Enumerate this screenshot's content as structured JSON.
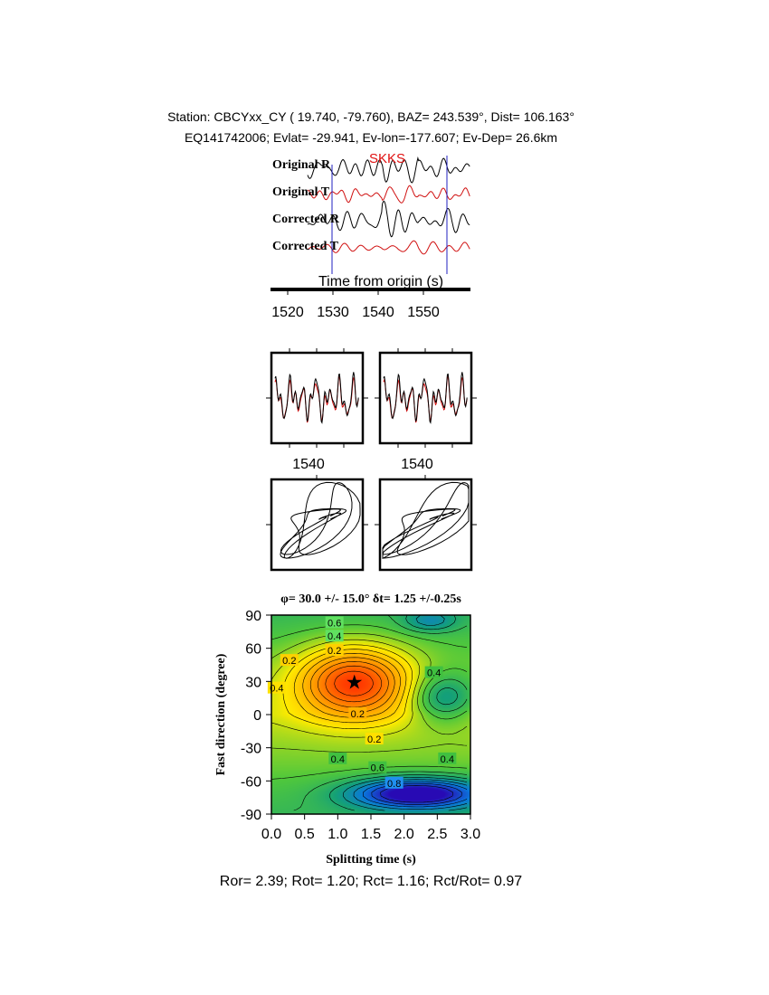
{
  "header": {
    "station_line": "Station: CBCYxx_CY (  19.740,  -79.760), BAZ=  243.539°, Dist=  106.163°",
    "event_line": "EQ141742006; Evlat= -29.941, Ev-lon=-177.607; Ev-Dep= 26.6km"
  },
  "traces": {
    "phase_label": "SKKS",
    "labels": [
      "Original R",
      "Original T",
      "Corrected R",
      "Corrected T"
    ],
    "time_axis_label": "Time from origin (s)",
    "time_ticks": [
      "1520",
      "1530",
      "1540",
      "1550"
    ]
  },
  "panels": {
    "wave_tick_left": "1540",
    "wave_tick_right": "1540"
  },
  "contour": {
    "title": "φ= 30.0 +/- 15.0° δt= 1.25 +/-0.25s",
    "ylabel": "Fast direction (degree)",
    "xlabel": "Splitting time (s)",
    "contour_labels": [
      "0.6",
      "0.4",
      "0.2",
      "0.2",
      "0.4",
      "0.2",
      "0.2",
      "0.4",
      "0.4",
      "0.6",
      "0.8"
    ]
  },
  "footer": {
    "ratios": "Ror= 2.39; Rot= 1.20; Rct= 1.16; Rct/Rot= 0.97"
  },
  "colors": {
    "radial": "#000000",
    "transverse": "#d01010",
    "phase_marker": "#2020c0",
    "phase_label": "#e01010"
  },
  "chart_data": [
    {
      "type": "line",
      "title": "",
      "xlabel": "Time from origin (s)",
      "xticks": [
        1520,
        1530,
        1540,
        1550
      ],
      "xlim": [
        1520,
        1558
      ],
      "series": [
        {
          "name": "Original R"
        },
        {
          "name": "Original T"
        },
        {
          "name": "Corrected R"
        },
        {
          "name": "Corrected T"
        }
      ],
      "window_markers_s": [
        1530,
        1555
      ],
      "phase": "SKKS"
    },
    {
      "type": "heatmap",
      "title": "φ= 30.0 +/- 15.0° δt= 1.25 +/-0.25s",
      "xlabel": "Splitting time (s)",
      "ylabel": "Fast direction (degree)",
      "xlim": [
        0.0,
        3.0
      ],
      "ylim": [
        -90,
        90
      ],
      "xticks": [
        "0.0",
        "0.5",
        "1.0",
        "1.5",
        "2.0",
        "2.5",
        "3.0"
      ],
      "yticks": [
        "-90",
        "-60",
        "-30",
        "0",
        "30",
        "60",
        "90"
      ],
      "best_fit": {
        "phi": 30.0,
        "phi_err": 15.0,
        "dt": 1.25,
        "dt_err": 0.25
      },
      "contour_levels_labeled": [
        0.2,
        0.4,
        0.6,
        0.8
      ]
    }
  ]
}
